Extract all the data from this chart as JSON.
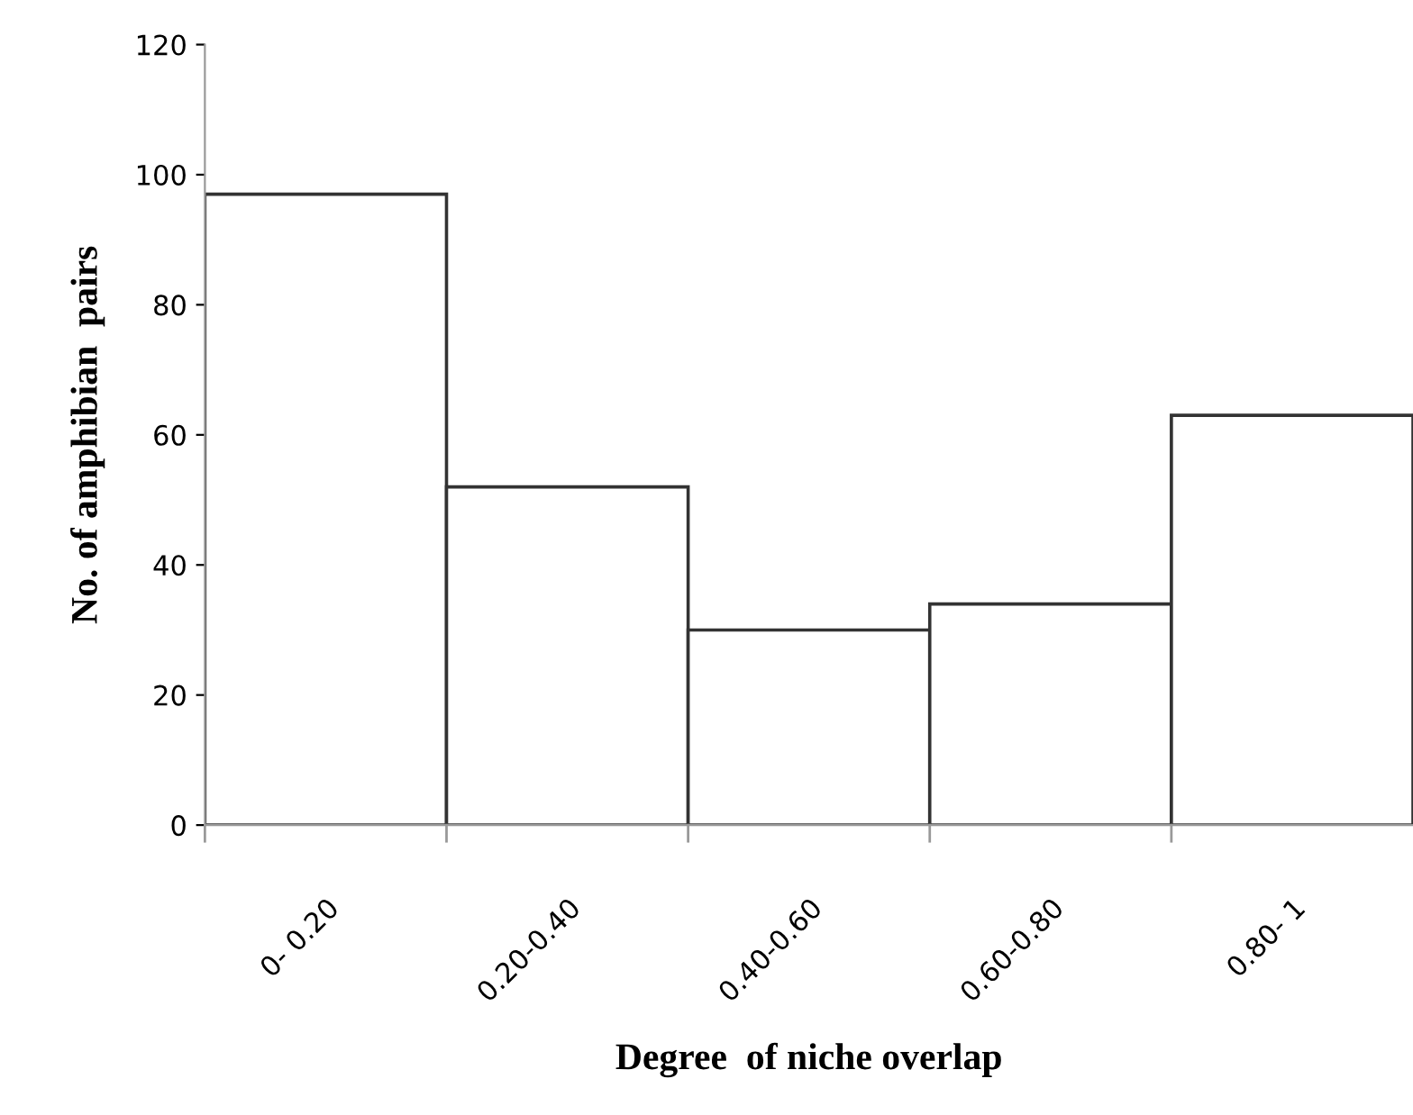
{
  "chart_data": {
    "type": "bar",
    "xlabel": "Degree  of niche overlap",
    "ylabel": "No. of amphibian  pairs",
    "categories": [
      "0- 0.20",
      "0.20-0.40",
      "0.40-0.60",
      "0.60-0.80",
      "0.80- 1"
    ],
    "series": [
      {
        "color": "#ffffff",
        "values": [
          97,
          52,
          30,
          34,
          63
        ]
      }
    ],
    "ylim": [
      0,
      120
    ],
    "yticks": [
      0,
      20,
      40,
      60,
      80,
      100,
      120
    ],
    "grid": false,
    "legend": false
  }
}
